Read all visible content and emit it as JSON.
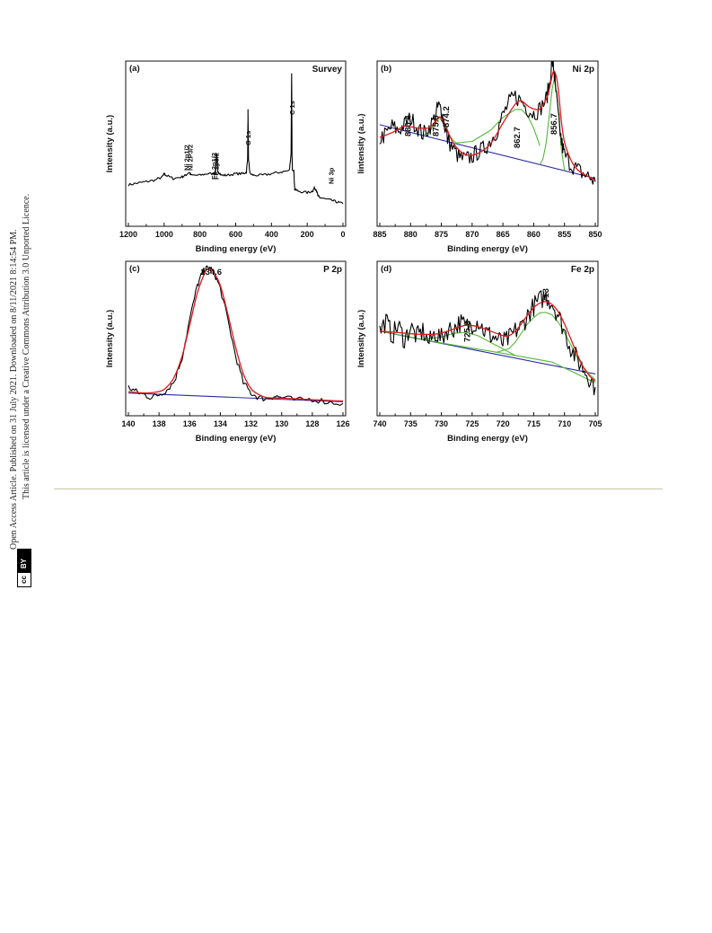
{
  "sidebar": {
    "line1": "Open Access Article. Published on 31 July 2021. Downloaded on 8/11/2021 8:14:54 PM.",
    "line2": "This article is licensed under a Creative Commons Attribution 3.0 Unported Licence.",
    "cc_badge": "cc",
    "by_badge": "BY"
  },
  "colors": {
    "data": "#000000",
    "envelope": "#e0181e",
    "component": "#55b83a",
    "background_line": "#2a2aa8",
    "separator": "#c9c7a4"
  },
  "chart_data": [
    {
      "panel": "(a)",
      "title": "Survey",
      "type": "line",
      "xlabel": "Binding energy (eV)",
      "ylabel": "Intensity (a.u.)",
      "xlim": [
        1200,
        0
      ],
      "ylim": [
        0,
        100
      ],
      "xticks": [
        1200,
        1000,
        800,
        600,
        400,
        200,
        0
      ],
      "series": [
        {
          "role": "data",
          "x": [
            1200,
            1150,
            1100,
            1050,
            1010,
            1000,
            990,
            950,
            900,
            880,
            860,
            850,
            800,
            760,
            720,
            712,
            706,
            700,
            680,
            650,
            600,
            560,
            540,
            533,
            531,
            528,
            520,
            500,
            450,
            400,
            350,
            300,
            290,
            287,
            285,
            283,
            275,
            270,
            250,
            200,
            170,
            160,
            150,
            140,
            130,
            100,
            60,
            30,
            0
          ],
          "y": [
            24,
            25,
            26,
            27,
            29,
            31,
            30,
            28,
            29,
            30,
            32,
            30,
            30,
            31,
            31,
            33,
            43,
            33,
            30,
            30,
            31,
            31,
            32,
            41,
            71,
            40,
            31,
            30,
            30,
            31,
            32,
            33,
            44,
            95,
            44,
            34,
            33,
            21,
            20,
            19,
            20,
            22,
            21,
            17,
            16,
            15,
            14,
            13,
            12
          ]
        }
      ],
      "annotations": [
        {
          "text": "Ni 2p1/2",
          "x": 875
        },
        {
          "text": "Ni 2P3/2",
          "x": 855
        },
        {
          "text": "Fe 2p1/2",
          "x": 724
        },
        {
          "text": "Fe 2p3/2",
          "x": 710
        },
        {
          "text": "O 1s",
          "x": 531
        },
        {
          "text": "C 1s",
          "x": 285
        },
        {
          "text": "Ni 3p",
          "x": 67
        }
      ]
    },
    {
      "panel": "(b)",
      "title": "Ni 2p",
      "type": "line",
      "xlabel": "Binding energy (eV)",
      "ylabel": "Iintensity (a.u.)",
      "xlim": [
        885,
        850
      ],
      "ylim": [
        0,
        100
      ],
      "xticks": [
        885,
        880,
        875,
        870,
        865,
        860,
        855,
        850
      ],
      "series": [
        {
          "role": "data",
          "x": [
            885,
            884,
            883,
            882,
            881,
            880,
            879,
            878,
            877,
            876,
            875.5,
            875,
            874.5,
            874,
            873,
            872,
            871,
            870,
            869,
            868,
            867,
            866,
            865,
            864,
            863,
            862,
            861,
            860,
            859,
            858,
            857.5,
            857,
            856.7,
            856.5,
            856,
            855.5,
            855,
            854,
            853,
            852,
            851,
            850
          ],
          "y": [
            53,
            56,
            61,
            58,
            62,
            66,
            61,
            56,
            60,
            67,
            74,
            71,
            62,
            53,
            46,
            41,
            40,
            42,
            45,
            47,
            52,
            58,
            68,
            76,
            80,
            77,
            72,
            69,
            72,
            78,
            86,
            103,
            96,
            87,
            67,
            51,
            43,
            37,
            34,
            31,
            29,
            26
          ]
        },
        {
          "role": "envelope",
          "x": [
            885,
            883,
            881,
            879,
            877,
            876,
            875.3,
            874.5,
            873,
            871,
            869,
            867,
            865,
            863,
            862,
            861,
            860,
            859,
            858,
            857.5,
            857,
            856.7,
            856.3,
            856,
            855.5,
            855,
            854,
            853,
            852,
            851,
            850
          ],
          "y": [
            54,
            57,
            61,
            60,
            60,
            64,
            67,
            63,
            50,
            43,
            44,
            50,
            63,
            75,
            77,
            74,
            72,
            72,
            78,
            84,
            93,
            96,
            92,
            84,
            64,
            51,
            40,
            34,
            31,
            29,
            27
          ]
        },
        {
          "role": "component",
          "x": [
            878,
            877,
            876,
            875.3,
            874.5,
            873.5,
            872.5
          ],
          "y": [
            0,
            3,
            10,
            14,
            10,
            3,
            0
          ]
        },
        {
          "role": "component",
          "x": [
            873,
            870,
            867,
            865,
            863,
            862,
            861,
            860,
            859
          ],
          "y": [
            0,
            4,
            14,
            24,
            31,
            32,
            29,
            22,
            12
          ]
        },
        {
          "role": "component",
          "x": [
            859,
            858.5,
            858,
            857.5,
            857,
            856.7,
            856.3,
            856,
            855.5,
            855
          ],
          "y": [
            0,
            4,
            14,
            32,
            50,
            56,
            49,
            36,
            13,
            0
          ]
        },
        {
          "role": "background",
          "x": [
            885,
            850
          ],
          "y": [
            62,
            28
          ]
        }
      ],
      "annotations": [
        {
          "text": "880.4",
          "x": 880.4
        },
        {
          "text": "875.9",
          "x": 875.9
        },
        {
          "text": "874.2",
          "x": 874.2
        },
        {
          "text": "862.7",
          "x": 862.7
        },
        {
          "text": "856.7",
          "x": 856.7
        }
      ]
    },
    {
      "panel": "(c)",
      "title": "P 2p",
      "type": "line",
      "xlabel": "Binding energy (eV)",
      "ylabel": "Intensity (a.u.)",
      "xlim": [
        140,
        126
      ],
      "ylim": [
        0,
        100
      ],
      "xticks": [
        140,
        138,
        136,
        134,
        132,
        130,
        128,
        126
      ],
      "series": [
        {
          "role": "data",
          "x": [
            140,
            139.5,
            139,
            138.5,
            138,
            137.5,
            137,
            136.5,
            136,
            135.5,
            135.2,
            135,
            134.8,
            134.6,
            134.3,
            134,
            133.5,
            133,
            132.5,
            132,
            131.5,
            131,
            130.5,
            130,
            129,
            128,
            127,
            126
          ],
          "y": [
            17,
            14,
            12,
            10,
            12,
            15,
            21,
            37,
            63,
            86,
            94,
            97,
            98,
            97,
            92,
            84,
            62,
            38,
            20,
            13,
            10,
            9,
            11,
            10,
            8,
            9,
            7,
            6
          ]
        },
        {
          "role": "envelope",
          "x": [
            140,
            139,
            138,
            137.5,
            137,
            136.5,
            136,
            135.5,
            135,
            134.8,
            134.5,
            134,
            133.5,
            133,
            132.5,
            132,
            131.5,
            131,
            130,
            129,
            128,
            127,
            126
          ],
          "y": [
            14,
            13,
            14,
            17,
            24,
            38,
            59,
            81,
            95,
            97,
            96,
            86,
            66,
            44,
            26,
            16,
            12,
            10,
            9.5,
            9,
            8.5,
            8,
            7.5
          ]
        },
        {
          "role": "background",
          "x": [
            140,
            126
          ],
          "y": [
            13,
            7
          ]
        }
      ],
      "annotations": [
        {
          "text": "134.6",
          "x": 134.6
        }
      ]
    },
    {
      "panel": "(d)",
      "title": "Fe 2p",
      "type": "line",
      "xlabel": "Binding energy (eV)",
      "ylabel": "Intensity (a.u.)",
      "xlim": [
        740,
        705
      ],
      "ylim": [
        0,
        100
      ],
      "xticks": [
        740,
        735,
        730,
        725,
        720,
        715,
        710,
        705
      ],
      "series": [
        {
          "role": "data",
          "x": [
            740,
            739,
            738,
            737,
            736,
            735,
            734,
            733,
            732,
            731,
            730,
            729,
            728,
            727,
            726,
            725,
            724,
            723,
            722,
            721,
            720,
            719,
            718,
            717,
            716,
            715,
            714,
            713,
            712,
            711,
            710,
            709,
            708,
            707,
            706,
            705
          ],
          "y": [
            55,
            62,
            52,
            59,
            49,
            58,
            51,
            55,
            47,
            54,
            50,
            56,
            57,
            61,
            58,
            60,
            62,
            55,
            52,
            50,
            47,
            50,
            55,
            58,
            66,
            72,
            76,
            79,
            74,
            66,
            55,
            44,
            36,
            30,
            24,
            17
          ]
        },
        {
          "role": "envelope",
          "x": [
            740,
            737,
            734,
            731,
            729,
            727,
            725.8,
            724,
            722,
            720,
            719,
            718,
            717,
            716,
            715,
            714,
            713,
            712,
            711,
            710,
            709,
            708,
            707,
            706,
            705
          ],
          "y": [
            55,
            54,
            53,
            53,
            55,
            58,
            59,
            58,
            55,
            52,
            52,
            55,
            60,
            66,
            71,
            74,
            75,
            73,
            68,
            60,
            50,
            40,
            31,
            25,
            21
          ]
        },
        {
          "role": "component",
          "x": [
            733,
            730,
            728,
            726,
            725.8,
            724,
            722,
            720,
            718
          ],
          "y": [
            0,
            4,
            8,
            10,
            10,
            9,
            6,
            3,
            0
          ]
        },
        {
          "role": "component",
          "x": [
            721,
            719,
            718,
            717,
            716,
            715,
            714,
            713,
            712,
            711,
            710,
            709,
            708,
            707,
            706,
            705
          ],
          "y": [
            0,
            4,
            9,
            16,
            23,
            28,
            32,
            33,
            32,
            29,
            24,
            18,
            12,
            7,
            4,
            2
          ]
        },
        {
          "role": "component-baseline",
          "x": [
            740,
            730,
            720,
            712,
            705
          ],
          "y": [
            55,
            47,
            40,
            34,
            20
          ]
        },
        {
          "role": "background",
          "x": [
            740,
            705
          ],
          "y": [
            55,
            26
          ]
        }
      ],
      "annotations": [
        {
          "text": "725.8",
          "x": 725.8
        },
        {
          "text": "713",
          "x": 713
        }
      ]
    }
  ]
}
